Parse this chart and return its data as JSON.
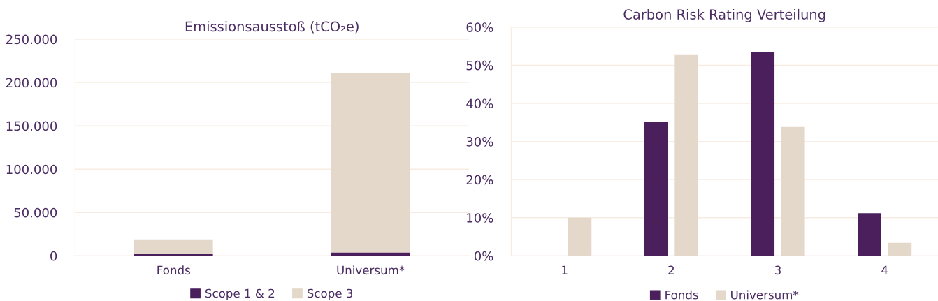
{
  "chart_data": [
    {
      "type": "bar",
      "title": "Emissionsausstoß (tCO₂e)",
      "categories": [
        "Fonds",
        "Universum*"
      ],
      "stacked": true,
      "series": [
        {
          "name": "Scope 1 & 2",
          "color": "#4a1f5c",
          "values": [
            2000,
            4000
          ]
        },
        {
          "name": "Scope 3",
          "color": "#e3d8c9",
          "values": [
            17000,
            207000
          ]
        }
      ],
      "ylim": [
        0,
        250000
      ],
      "yticks": [
        {
          "value": 0,
          "label": "0"
        },
        {
          "value": 50000,
          "label": "50.000"
        },
        {
          "value": 100000,
          "label": "100.000"
        },
        {
          "value": 150000,
          "label": "150.000"
        },
        {
          "value": 200000,
          "label": "200.000"
        },
        {
          "value": 250000,
          "label": "250.000"
        }
      ],
      "grid": "y",
      "legend": "bottom"
    },
    {
      "type": "bar",
      "title": "Carbon Risk Rating Verteilung",
      "categories": [
        "1",
        "2",
        "3",
        "4"
      ],
      "series": [
        {
          "name": "Fonds",
          "color": "#4a1f5c",
          "values": [
            0,
            35.2,
            53.4,
            11.2
          ]
        },
        {
          "name": "Universum*",
          "color": "#e3d8c9",
          "values": [
            10.0,
            52.7,
            33.8,
            3.4
          ]
        }
      ],
      "ylim": [
        0,
        60
      ],
      "yticks": [
        {
          "value": 0,
          "label": "0%"
        },
        {
          "value": 10,
          "label": "10%"
        },
        {
          "value": 20,
          "label": "20%"
        },
        {
          "value": 30,
          "label": "30%"
        },
        {
          "value": 40,
          "label": "40%"
        },
        {
          "value": 50,
          "label": "50%"
        },
        {
          "value": 60,
          "label": "60%"
        }
      ],
      "grid": "y",
      "legend": "bottom"
    }
  ]
}
